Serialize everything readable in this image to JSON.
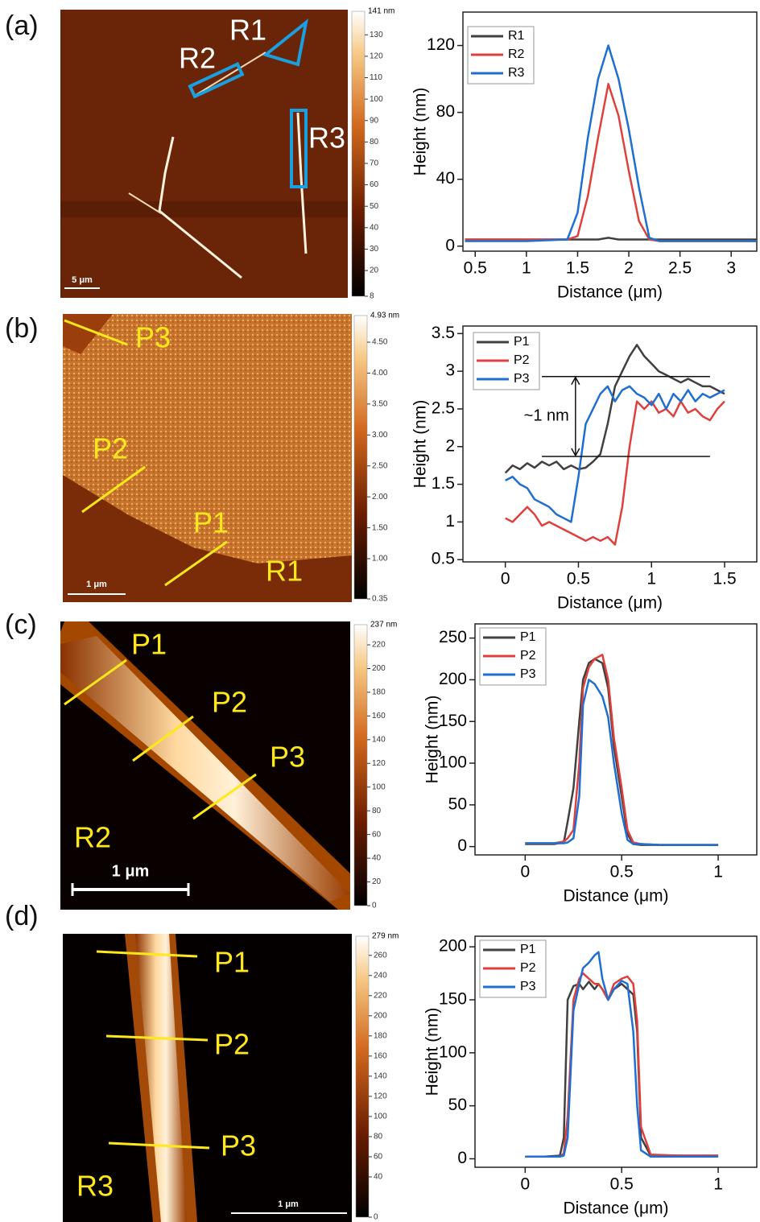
{
  "panels": [
    {
      "label": "(a)",
      "image": {
        "labels": [
          "R1",
          "R2",
          "R3"
        ],
        "scale_bar": "5 μm"
      },
      "colorbar": {
        "max": {
          "value": 141,
          "label": "141 nm"
        },
        "ticks": [
          130,
          120,
          110,
          100,
          90,
          80,
          70,
          60,
          50,
          40,
          30,
          20,
          8
        ]
      }
    },
    {
      "label": "(b)",
      "image": {
        "labels": [
          "P3",
          "P2",
          "P1",
          "R1"
        ],
        "scale_bar": "1 μm"
      },
      "colorbar": {
        "max": {
          "value": 4.93,
          "label": "4.93 nm"
        },
        "ticks": [
          {
            "value": 4.5,
            "label": "4.50"
          },
          {
            "value": 4,
            "label": "4.00"
          },
          {
            "value": 3.5,
            "label": "3.50"
          },
          {
            "value": 3,
            "label": "3.00"
          },
          {
            "value": 2.5,
            "label": "2.50"
          },
          {
            "value": 2,
            "label": "2.00"
          },
          {
            "value": 1.5,
            "label": "1.50"
          },
          {
            "value": 1,
            "label": "1.00"
          },
          {
            "value": 0.35,
            "label": "0.35"
          }
        ]
      }
    },
    {
      "label": "(c)",
      "image": {
        "labels": [
          "P1",
          "P2",
          "P3",
          "R2"
        ],
        "scale_bar": "1 μm"
      },
      "colorbar": {
        "max": {
          "value": 237,
          "label": "237 nm"
        },
        "ticks": [
          220,
          200,
          180,
          160,
          140,
          120,
          100,
          80,
          60,
          40,
          20,
          0
        ]
      }
    },
    {
      "label": "(d)",
      "image": {
        "labels": [
          "P1",
          "P2",
          "P3",
          "R3"
        ],
        "scale_bar": "1 μm"
      },
      "colorbar": {
        "max": {
          "value": 279,
          "label": "279 nm"
        },
        "ticks": [
          260,
          240,
          220,
          200,
          180,
          160,
          140,
          120,
          100,
          80,
          60,
          40,
          0
        ]
      }
    }
  ],
  "chart_data": [
    {
      "type": "line",
      "xlabel": "Distance (μm)",
      "ylabel": "Height (nm)",
      "x": [
        0.4,
        1.0,
        1.4,
        1.5,
        1.6,
        1.7,
        1.8,
        1.9,
        2.0,
        2.1,
        2.2,
        2.3,
        2.6,
        3.25
      ],
      "series": [
        {
          "name": "R1",
          "color": "#404040",
          "values": [
            4,
            4,
            4,
            4,
            4,
            4,
            5,
            4,
            4,
            4,
            4,
            4,
            4,
            4
          ]
        },
        {
          "name": "R2",
          "color": "#e0403c",
          "values": [
            4,
            4,
            4,
            6,
            30,
            65,
            97,
            78,
            45,
            15,
            4,
            3,
            3,
            3
          ]
        },
        {
          "name": "R3",
          "color": "#1f6fd1",
          "values": [
            3,
            3,
            4,
            20,
            65,
            100,
            120,
            100,
            70,
            35,
            5,
            3,
            3,
            3
          ]
        }
      ],
      "xlim": [
        0.38,
        3.25
      ],
      "ylim": [
        -3,
        140
      ],
      "xticks": [
        0.5,
        1,
        1.5,
        2,
        2.5,
        3
      ],
      "yticks": [
        0,
        40,
        80,
        120
      ]
    },
    {
      "type": "line",
      "xlabel": "Distance (μm)",
      "ylabel": "Height (nm)",
      "x": [
        0,
        0.05,
        0.1,
        0.15,
        0.2,
        0.25,
        0.3,
        0.35,
        0.4,
        0.45,
        0.5,
        0.55,
        0.6,
        0.65,
        0.7,
        0.75,
        0.8,
        0.85,
        0.9,
        0.95,
        1.0,
        1.05,
        1.1,
        1.15,
        1.2,
        1.25,
        1.3,
        1.35,
        1.4,
        1.45,
        1.5
      ],
      "series": [
        {
          "name": "P1",
          "color": "#404040",
          "values": [
            1.65,
            1.75,
            1.7,
            1.78,
            1.72,
            1.8,
            1.75,
            1.8,
            1.7,
            1.75,
            1.7,
            1.72,
            1.8,
            1.9,
            2.3,
            2.8,
            3.0,
            3.2,
            3.35,
            3.2,
            3.1,
            3.0,
            2.95,
            2.9,
            2.85,
            2.9,
            2.85,
            2.8,
            2.8,
            2.75,
            2.7
          ]
        },
        {
          "name": "P2",
          "color": "#e0403c",
          "values": [
            1.05,
            1.0,
            1.1,
            1.2,
            1.1,
            0.95,
            1.0,
            0.95,
            0.9,
            0.85,
            0.8,
            0.75,
            0.8,
            0.75,
            0.8,
            0.7,
            1.2,
            2.0,
            2.6,
            2.5,
            2.6,
            2.45,
            2.5,
            2.4,
            2.6,
            2.45,
            2.5,
            2.4,
            2.35,
            2.5,
            2.6
          ]
        },
        {
          "name": "P3",
          "color": "#1f6fd1",
          "values": [
            1.55,
            1.6,
            1.5,
            1.45,
            1.3,
            1.25,
            1.2,
            1.1,
            1.05,
            1.0,
            1.6,
            2.3,
            2.5,
            2.7,
            2.8,
            2.6,
            2.75,
            2.8,
            2.7,
            2.65,
            2.55,
            2.7,
            2.5,
            2.7,
            2.6,
            2.75,
            2.6,
            2.7,
            2.65,
            2.7,
            2.75
          ]
        }
      ],
      "annotation": {
        "text": "~1 nm",
        "levels": [
          2.93,
          1.87
        ],
        "x": [
          0.25,
          1.4
        ]
      },
      "xlim": [
        -0.29,
        1.72
      ],
      "ylim": [
        0.47,
        3.6
      ],
      "xticks": [
        0,
        0.5,
        1,
        1.5
      ],
      "yticks": [
        0.5,
        1,
        1.5,
        2,
        2.5,
        3,
        3.5
      ]
    },
    {
      "type": "line",
      "xlabel": "Distance (μm)",
      "ylabel": "Height (nm)",
      "x": [
        0,
        0.1,
        0.15,
        0.2,
        0.22,
        0.25,
        0.28,
        0.3,
        0.33,
        0.36,
        0.4,
        0.43,
        0.46,
        0.5,
        0.53,
        0.56,
        0.6,
        0.7,
        1.0
      ],
      "series": [
        {
          "name": "P1",
          "color": "#404040",
          "values": [
            3,
            3,
            3,
            5,
            30,
            70,
            150,
            200,
            220,
            225,
            220,
            190,
            120,
            60,
            15,
            3,
            2,
            2,
            2
          ]
        },
        {
          "name": "P2",
          "color": "#e0403c",
          "values": [
            4,
            4,
            4,
            6,
            10,
            20,
            100,
            190,
            215,
            225,
            230,
            200,
            130,
            70,
            20,
            5,
            3,
            2,
            2
          ]
        },
        {
          "name": "P3",
          "color": "#1f6fd1",
          "values": [
            4,
            4,
            4,
            4,
            5,
            10,
            60,
            170,
            200,
            195,
            180,
            155,
            100,
            40,
            8,
            3,
            3,
            2,
            2
          ]
        }
      ],
      "xlim": [
        -0.26,
        1.2
      ],
      "ylim": [
        -10,
        267
      ],
      "xticks": [
        0,
        0.5,
        1
      ],
      "yticks": [
        0,
        50,
        100,
        150,
        200,
        250
      ]
    },
    {
      "type": "line",
      "xlabel": "Distance (μm)",
      "ylabel": "Height (nm)",
      "x": [
        0,
        0.1,
        0.18,
        0.2,
        0.22,
        0.25,
        0.28,
        0.3,
        0.33,
        0.36,
        0.38,
        0.4,
        0.43,
        0.46,
        0.5,
        0.53,
        0.56,
        0.58,
        0.6,
        0.65,
        0.8,
        1.0
      ],
      "series": [
        {
          "name": "P1",
          "color": "#404040",
          "values": [
            2,
            2,
            3,
            20,
            150,
            163,
            165,
            160,
            167,
            160,
            165,
            160,
            150,
            160,
            165,
            160,
            155,
            120,
            20,
            3,
            3,
            3
          ]
        },
        {
          "name": "P2",
          "color": "#e0403c",
          "values": [
            2,
            2,
            2,
            5,
            40,
            150,
            170,
            175,
            170,
            165,
            165,
            160,
            150,
            165,
            170,
            172,
            165,
            130,
            30,
            4,
            3,
            3
          ]
        },
        {
          "name": "P3",
          "color": "#1f6fd1",
          "values": [
            2,
            2,
            2,
            3,
            20,
            140,
            165,
            180,
            185,
            192,
            195,
            170,
            150,
            160,
            168,
            165,
            120,
            50,
            8,
            2,
            2,
            2
          ]
        }
      ],
      "xlim": [
        -0.26,
        1.2
      ],
      "ylim": [
        -8,
        210
      ],
      "xticks": [
        0,
        0.5,
        1
      ],
      "yticks": [
        0,
        50,
        100,
        150,
        200
      ]
    }
  ]
}
